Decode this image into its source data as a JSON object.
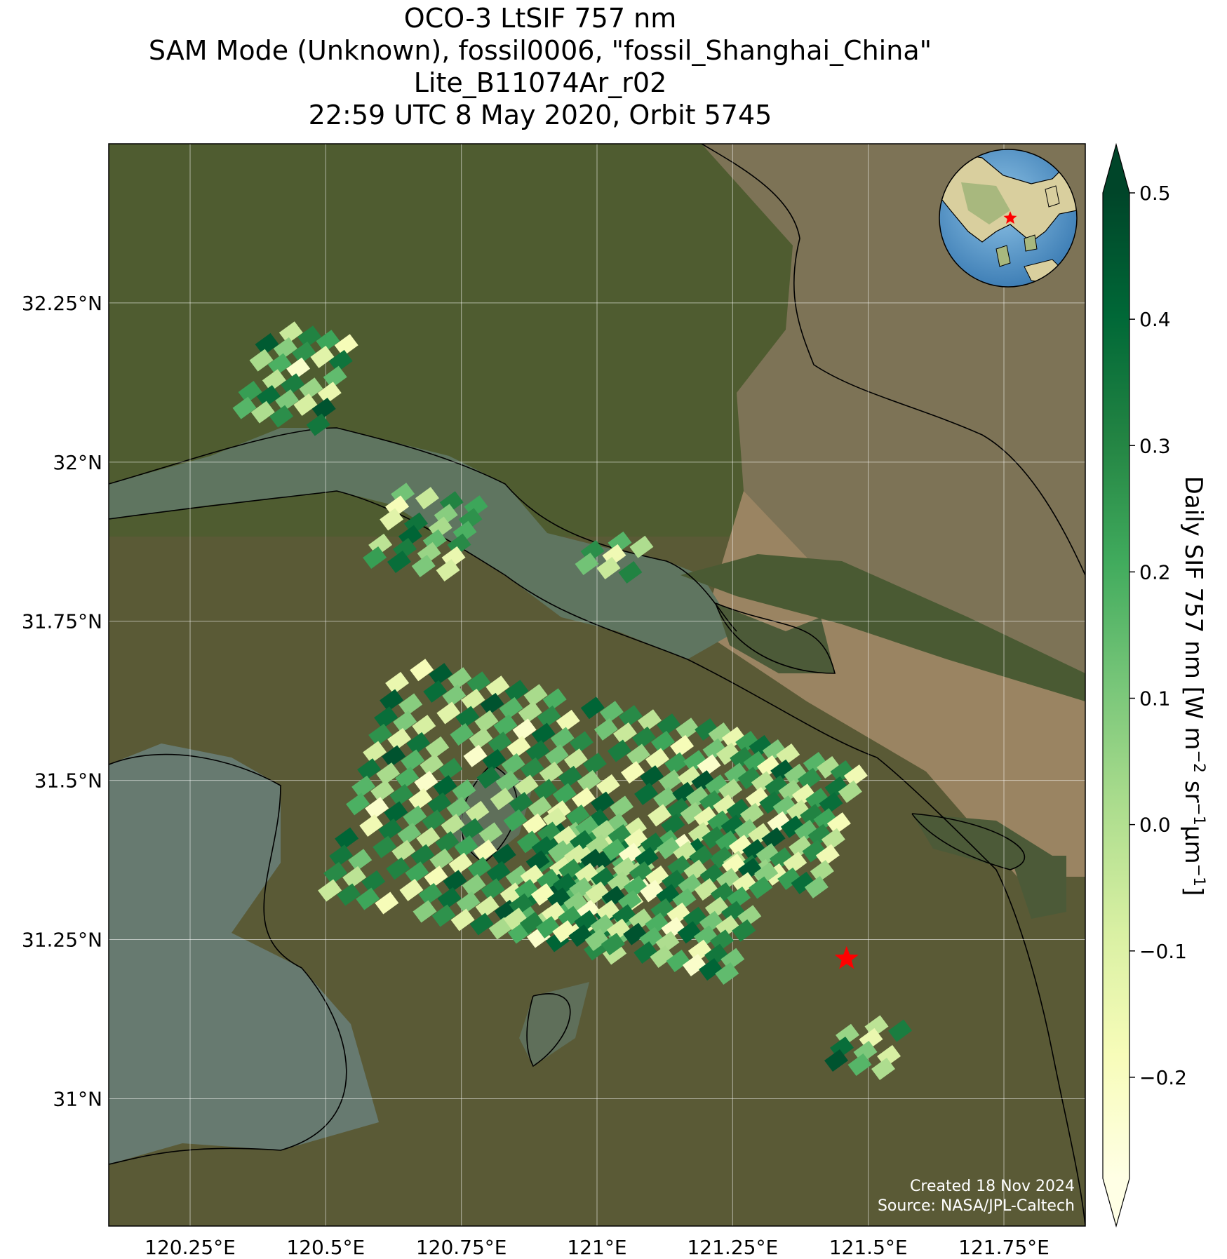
{
  "title": {
    "line1": "OCO-3 LtSIF 757 nm",
    "line2": "SAM Mode (Unknown), fossil0006, \"fossil_Shanghai_China\"",
    "line3": "Lite_B11074Ar_r02",
    "line4": "22:59 UTC 8 May 2020, Orbit 5745"
  },
  "map": {
    "lon_range": [
      120.1,
      121.9
    ],
    "lat_range": [
      30.8,
      32.5
    ],
    "lon_ticks": [
      120.25,
      120.5,
      120.75,
      121.0,
      121.25,
      121.5,
      121.75
    ],
    "lat_ticks": [
      31.0,
      31.25,
      31.5,
      31.75,
      32.0,
      32.25
    ],
    "lon_tick_labels": [
      "120.25°E",
      "120.5°E",
      "120.75°E",
      "121°E",
      "121.25°E",
      "121.5°E",
      "121.75°E"
    ],
    "lat_tick_labels": [
      "31°N",
      "31.25°N",
      "31.5°N",
      "31.75°N",
      "32°N",
      "32.25°N"
    ],
    "target": {
      "lon": 121.46,
      "lat": 31.22,
      "marker": "red-star"
    },
    "gridlines": true,
    "inset_globe": {
      "placement": "top-right",
      "marker": "red-star"
    }
  },
  "credits": {
    "created": "Created 18 Nov 2024",
    "source": "Source: NASA/JPL-Caltech"
  },
  "colorbar": {
    "label_main": "Daily SIF 757 nm [W m",
    "label_sup1": "−2",
    "label_mid": " sr",
    "label_sup2": "−1",
    "label_unit": "μm",
    "label_sup3": "−1",
    "label_end": "]",
    "vmin": -0.28,
    "vmax": 0.5,
    "colormap": "YlGn",
    "extend": "both",
    "ticks": [
      0.5,
      0.4,
      0.3,
      0.2,
      0.1,
      0.0,
      -0.1,
      -0.2
    ],
    "tick_labels": [
      "0.5",
      "0.4",
      "0.3",
      "0.2",
      "0.1",
      "0.0",
      "−0.1",
      "−0.2"
    ]
  },
  "chart_data": {
    "type": "heatmap",
    "title": "OCO-3 LtSIF 757 nm",
    "xlabel": "",
    "ylabel": "",
    "xlim": [
      120.1,
      121.9
    ],
    "ylim": [
      30.8,
      32.5
    ],
    "value_label": "Daily SIF 757 nm [W m−2 sr−1μm−1]",
    "clusters": [
      {
        "lon_start": 120.38,
        "lat_start": 32.21,
        "lon_end": 120.55,
        "lat_end": 32.06,
        "rows": 6,
        "cols": 5
      },
      {
        "lon_start": 120.62,
        "lat_start": 31.95,
        "lon_end": 120.8,
        "lat_end": 31.83,
        "rows": 6,
        "cols": 4
      },
      {
        "lon_start": 120.98,
        "lat_start": 31.88,
        "lon_end": 121.1,
        "lat_end": 31.82,
        "rows": 3,
        "cols": 3
      },
      {
        "lon_start": 120.62,
        "lat_start": 31.68,
        "lon_end": 121.18,
        "lat_end": 31.3,
        "rows": 14,
        "cols": 16
      },
      {
        "lon_start": 121.18,
        "lat_start": 31.58,
        "lon_end": 121.48,
        "lat_end": 31.38,
        "rows": 8,
        "cols": 12
      },
      {
        "lon_start": 120.9,
        "lat_start": 31.44,
        "lon_end": 121.32,
        "lat_end": 31.26,
        "rows": 8,
        "cols": 14
      },
      {
        "lon_start": 121.45,
        "lat_start": 31.12,
        "lon_end": 121.58,
        "lat_end": 31.04,
        "rows": 4,
        "cols": 3
      }
    ],
    "sample_values": [
      0.12,
      -0.05,
      0.31,
      0.22,
      -0.18,
      0.44,
      0.08,
      0.27,
      -0.11,
      0.36,
      0.02,
      0.19,
      -0.22,
      0.41,
      0.15,
      0.29,
      -0.02,
      0.33,
      0.05,
      -0.14,
      0.24,
      0.38,
      0.1,
      -0.08,
      0.46,
      0.17,
      0.01,
      0.28,
      -0.16,
      0.35
    ]
  }
}
